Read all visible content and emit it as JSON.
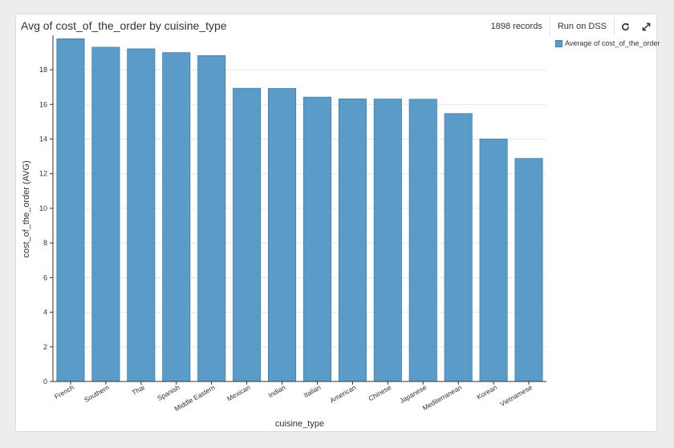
{
  "header": {
    "title": "Avg of cost_of_the_order by cuisine_type",
    "records": "1898 records",
    "run_label": "Run on DSS",
    "refresh_icon": "refresh-icon",
    "expand_icon": "expand-icon"
  },
  "legend": {
    "label": "Average of cost_of_the_order",
    "color": "#5b9bc8"
  },
  "chart_data": {
    "type": "bar",
    "title": "Avg of cost_of_the_order by cuisine_type",
    "xlabel": "cuisine_type",
    "ylabel": "cost_of_the_order (AVG)",
    "categories": [
      "French",
      "Southern",
      "Thai",
      "Spanish",
      "Middle Eastern",
      "Mexican",
      "Indian",
      "Italian",
      "American",
      "Chinese",
      "Japanese",
      "Mediterranean",
      "Korean",
      "Vietnamese"
    ],
    "series": [
      {
        "name": "Average of cost_of_the_order",
        "values": [
          19.79,
          19.3,
          19.21,
          18.99,
          18.82,
          16.93,
          16.92,
          16.42,
          16.32,
          16.31,
          16.3,
          15.47,
          14.0,
          12.88
        ],
        "color": "#5b9bc8"
      }
    ],
    "ylim": [
      0,
      19.9
    ],
    "yticks": [
      0,
      2,
      4,
      6,
      8,
      10,
      12,
      14,
      16,
      18
    ],
    "grid": true,
    "legend_position": "top-right"
  }
}
